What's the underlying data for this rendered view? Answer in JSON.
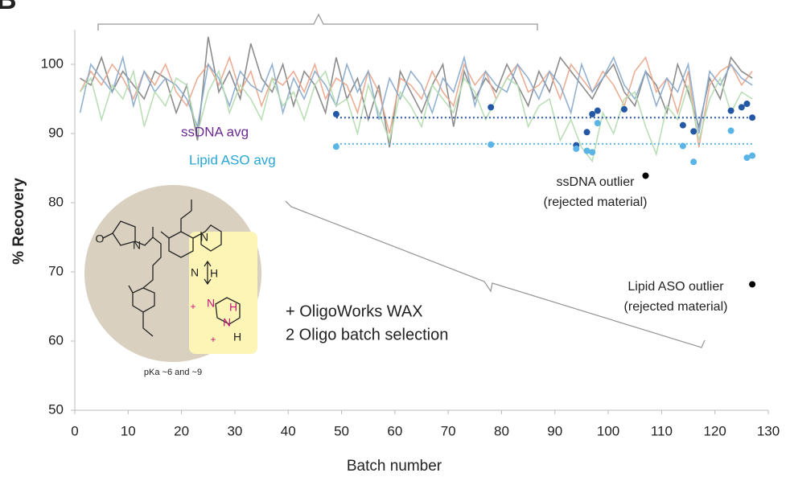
{
  "chart_data": {
    "type": "line",
    "panel_label": "B",
    "xlabel": "Batch number",
    "ylabel": "% Recovery",
    "xlim": [
      0,
      130
    ],
    "xticks": [
      0,
      10,
      20,
      30,
      40,
      50,
      60,
      70,
      80,
      90,
      100,
      110,
      120,
      130
    ],
    "ylim": [
      50,
      105
    ],
    "yticks": [
      50,
      60,
      70,
      80,
      90,
      100
    ],
    "x": [
      1,
      3,
      5,
      7,
      9,
      11,
      13,
      15,
      17,
      19,
      21,
      23,
      25,
      27,
      29,
      31,
      33,
      35,
      37,
      39,
      41,
      43,
      45,
      47,
      49,
      51,
      53,
      55,
      57,
      59,
      61,
      63,
      65,
      67,
      69,
      71,
      73,
      75,
      77,
      79,
      81,
      83,
      85,
      87,
      89,
      91,
      93,
      95,
      97,
      99,
      101,
      103,
      105,
      107,
      109,
      111,
      113,
      115,
      117,
      119,
      121,
      123,
      125,
      127
    ],
    "series": [
      {
        "color": "#7f7f7f",
        "values": [
          98,
          97,
          101,
          96,
          99,
          97,
          95,
          99,
          98,
          93,
          97,
          89,
          104,
          96,
          99,
          95,
          103,
          98,
          96,
          100,
          94,
          99,
          97,
          93,
          101,
          95,
          98,
          92,
          97,
          88,
          99,
          96,
          93,
          97,
          100,
          91,
          99,
          95,
          98,
          96,
          100,
          97,
          94,
          99,
          96,
          101,
          99,
          97,
          95,
          98,
          100,
          96,
          94,
          99,
          97,
          93,
          100,
          96,
          91,
          98,
          95,
          101,
          99,
          98
        ]
      },
      {
        "color": "#e9a58a",
        "values": [
          96,
          99,
          97,
          100,
          98,
          95,
          99,
          97,
          100,
          96,
          94,
          98,
          100,
          97,
          101,
          96,
          99,
          94,
          98,
          97,
          99,
          96,
          100,
          95,
          98,
          97,
          93,
          99,
          96,
          90,
          98,
          97,
          95,
          99,
          96,
          94,
          100,
          97,
          99,
          95,
          98,
          100,
          96,
          97,
          99,
          95,
          100,
          98,
          96,
          99,
          97,
          94,
          99,
          101,
          96,
          98,
          93,
          99,
          88,
          97,
          99,
          100,
          97,
          99
        ]
      },
      {
        "color": "#86a8cc",
        "values": [
          93,
          100,
          98,
          96,
          101,
          94,
          99,
          96,
          98,
          97,
          95,
          91,
          100,
          98,
          94,
          99,
          97,
          96,
          100,
          93,
          98,
          95,
          99,
          97,
          94,
          100,
          96,
          99,
          92,
          98,
          95,
          99,
          97,
          93,
          98,
          96,
          101,
          94,
          99,
          97,
          96,
          100,
          98,
          95,
          99,
          97,
          93,
          100,
          96,
          98,
          101,
          97,
          95,
          99,
          94,
          98,
          96,
          100,
          90,
          99,
          97,
          100,
          98,
          97
        ]
      },
      {
        "color": "#b3dcae",
        "values": [
          96,
          98,
          92,
          97,
          95,
          99,
          91,
          96,
          94,
          98,
          97,
          90,
          96,
          99,
          93,
          97,
          95,
          92,
          98,
          94,
          96,
          92,
          97,
          99,
          94,
          95,
          90,
          97,
          93,
          89,
          96,
          94,
          91,
          97,
          95,
          93,
          98,
          96,
          92,
          95,
          98,
          97,
          91,
          94,
          95,
          89,
          92,
          88,
          86,
          93,
          90,
          95,
          96,
          91,
          87,
          94,
          92,
          97,
          89,
          95,
          98,
          93,
          96,
          95
        ]
      }
    ],
    "points": [
      {
        "color": "#2457a4",
        "x": [
          49,
          78,
          94,
          96,
          97,
          98,
          103,
          114,
          116,
          123,
          125,
          126,
          127
        ],
        "values": [
          92.8,
          93.8,
          88.3,
          90.2,
          92.8,
          93.3,
          93.5,
          91.2,
          90.3,
          93.3,
          93.8,
          94.3,
          92.3
        ]
      },
      {
        "color": "#5ab4e5",
        "x": [
          49,
          78,
          94,
          96,
          97,
          98,
          114,
          116,
          123,
          126,
          127
        ],
        "values": [
          88.1,
          88.4,
          87.8,
          87.5,
          87.3,
          91.5,
          88.2,
          85.9,
          90.4,
          86.5,
          86.8
        ]
      },
      {
        "color": "#000000",
        "x": [
          107,
          127
        ],
        "values": [
          83.9,
          68.2
        ]
      }
    ],
    "reference_lines": [
      {
        "label": "ssDNA avg",
        "value": 92.3,
        "x": [
          49,
          127
        ],
        "color": "#2457a4",
        "label_color": "#6a2c91"
      },
      {
        "label": "Lipid ASO avg",
        "value": 88.5,
        "x": [
          49,
          127
        ],
        "color": "#5ab4e5",
        "label_color": "#2aa6d6"
      }
    ],
    "annotations": [
      {
        "lines": [
          "ssDNA outlier",
          "(rejected material)"
        ]
      },
      {
        "lines": [
          "Lipid ASO outlier",
          "(rejected material)"
        ]
      },
      {
        "lines": [
          "+ OligoWorks WAX",
          "2 Oligo batch selection"
        ]
      }
    ],
    "structure": {
      "atoms": [
        "O",
        "N",
        "N",
        "N",
        "H",
        "N",
        "H",
        "N",
        "H",
        "+",
        "+"
      ],
      "caption": "pKa ~6 and ~9"
    }
  }
}
